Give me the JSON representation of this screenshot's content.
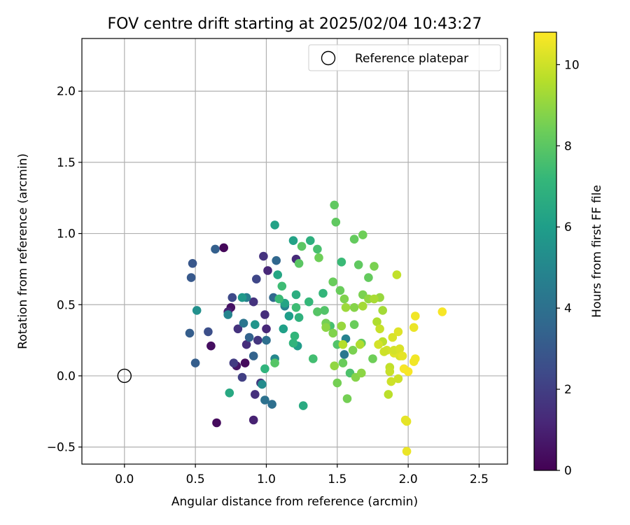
{
  "chart_data": {
    "type": "scatter",
    "title": "FOV centre drift starting at 2025/02/04 10:43:27",
    "xlabel": "Angular distance from reference (arcmin)",
    "ylabel": "Rotation from reference (arcmin)",
    "xlim": [
      -0.3,
      2.7
    ],
    "ylim": [
      -0.62,
      2.37
    ],
    "xticks": [
      0.0,
      0.5,
      1.0,
      1.5,
      2.0,
      2.5
    ],
    "xtick_labels": [
      "0.0",
      "0.5",
      "1.0",
      "1.5",
      "2.0",
      "2.5"
    ],
    "yticks": [
      -0.5,
      0.0,
      0.5,
      1.0,
      1.5,
      2.0
    ],
    "ytick_labels": [
      "−0.5",
      "0.0",
      "0.5",
      "1.0",
      "1.5",
      "2.0"
    ],
    "grid": true,
    "legend": {
      "location": "upper right",
      "label": "Reference platepar"
    },
    "reference_point": {
      "x": 0.0,
      "y": 0.0
    },
    "colorbar": {
      "label": "Hours from first FF file",
      "min": 0,
      "max": 10.8,
      "ticks": [
        0,
        2,
        4,
        6,
        8,
        10
      ],
      "tick_labels": [
        "0",
        "2",
        "4",
        "6",
        "8",
        "10"
      ],
      "colormap": "viridis",
      "colormap_stops": [
        "#440154",
        "#482878",
        "#3e4a89",
        "#31688e",
        "#26828e",
        "#1f9e89",
        "#35b779",
        "#6ece58",
        "#b5de2b",
        "#fde725"
      ]
    },
    "points": [
      [
        0.7,
        0.9,
        0.2
      ],
      [
        0.85,
        0.09,
        0.3
      ],
      [
        0.65,
        -0.33,
        0.3
      ],
      [
        0.61,
        0.21,
        0.4
      ],
      [
        0.75,
        0.48,
        0.5
      ],
      [
        0.79,
        0.07,
        0.6
      ],
      [
        0.91,
        -0.31,
        1.0
      ],
      [
        0.73,
        0.45,
        1.0
      ],
      [
        1.0,
        0.33,
        1.2
      ],
      [
        1.01,
        0.74,
        1.2
      ],
      [
        0.86,
        0.22,
        1.4
      ],
      [
        1.21,
        0.82,
        1.3
      ],
      [
        0.99,
        0.43,
        1.4
      ],
      [
        0.92,
        -0.13,
        1.5
      ],
      [
        0.91,
        0.52,
        1.6
      ],
      [
        0.98,
        0.84,
        1.6
      ],
      [
        0.94,
        0.25,
        1.7
      ],
      [
        0.8,
        0.33,
        1.6
      ],
      [
        0.96,
        -0.05,
        1.7
      ],
      [
        0.77,
        0.09,
        1.9
      ],
      [
        0.83,
        -0.01,
        2.0
      ],
      [
        0.93,
        0.68,
        2.3
      ],
      [
        0.76,
        0.55,
        2.4
      ],
      [
        0.59,
        0.31,
        2.6
      ],
      [
        0.48,
        0.79,
        2.9
      ],
      [
        0.47,
        0.69,
        3.0
      ],
      [
        0.46,
        0.3,
        3.2
      ],
      [
        0.5,
        0.09,
        3.2
      ],
      [
        0.64,
        0.89,
        3.3
      ],
      [
        0.88,
        0.27,
        3.4
      ],
      [
        0.91,
        0.14,
        3.4
      ],
      [
        1.07,
        0.81,
        3.6
      ],
      [
        1.05,
        0.55,
        3.6
      ],
      [
        1.0,
        0.25,
        3.9
      ],
      [
        1.04,
        -0.2,
        3.9
      ],
      [
        0.99,
        -0.17,
        4.0
      ],
      [
        0.84,
        0.37,
        4.2
      ],
      [
        1.55,
        0.15,
        4.3
      ],
      [
        0.86,
        0.55,
        4.6
      ],
      [
        1.56,
        0.26,
        4.8
      ],
      [
        1.13,
        0.49,
        4.8
      ],
      [
        0.73,
        0.43,
        4.9
      ],
      [
        1.06,
        0.12,
        5.0
      ],
      [
        0.97,
        -0.06,
        5.2
      ],
      [
        0.51,
        0.46,
        5.4
      ],
      [
        0.92,
        0.36,
        5.6
      ],
      [
        0.83,
        0.55,
        5.8
      ],
      [
        1.22,
        0.21,
        5.9
      ],
      [
        1.16,
        0.42,
        6.0
      ],
      [
        1.12,
        0.33,
        6.1
      ],
      [
        1.06,
        1.06,
        6.2
      ],
      [
        1.19,
        0.95,
        6.2
      ],
      [
        1.13,
        0.51,
        6.3
      ],
      [
        1.08,
        0.71,
        6.4
      ],
      [
        0.74,
        -0.12,
        6.5
      ],
      [
        1.26,
        -0.21,
        6.6
      ],
      [
        1.21,
        0.57,
        6.7
      ],
      [
        1.31,
        0.95,
        6.8
      ],
      [
        1.23,
        0.41,
        6.9
      ],
      [
        1.19,
        0.23,
        7.0
      ],
      [
        0.99,
        0.05,
        7.0
      ],
      [
        1.2,
        0.28,
        7.1
      ],
      [
        1.3,
        0.52,
        7.2
      ],
      [
        1.09,
        0.54,
        7.3
      ],
      [
        1.4,
        0.58,
        7.1
      ],
      [
        1.53,
        0.8,
        7.3
      ],
      [
        1.11,
        0.63,
        7.4
      ],
      [
        1.21,
        0.48,
        7.4
      ],
      [
        1.33,
        0.12,
        7.5
      ],
      [
        1.36,
        0.89,
        7.6
      ],
      [
        1.45,
        0.35,
        7.6
      ],
      [
        1.59,
        0.02,
        7.7
      ],
      [
        1.5,
        0.22,
        7.8
      ],
      [
        1.41,
        0.46,
        7.8
      ],
      [
        1.36,
        0.45,
        7.9
      ],
      [
        1.06,
        0.09,
        7.9
      ],
      [
        1.23,
        0.79,
        8.0
      ],
      [
        1.25,
        0.91,
        8.0
      ],
      [
        1.65,
        0.78,
        8.1
      ],
      [
        1.48,
        1.2,
        8.1
      ],
      [
        1.49,
        1.08,
        8.1
      ],
      [
        1.62,
        0.96,
        8.2
      ],
      [
        1.67,
        0.23,
        8.2
      ],
      [
        1.72,
        0.69,
        8.2
      ],
      [
        1.52,
        0.6,
        8.3
      ],
      [
        1.54,
        0.09,
        8.3
      ],
      [
        1.47,
        0.66,
        8.3
      ],
      [
        1.62,
        0.36,
        8.3
      ],
      [
        1.37,
        0.83,
        8.4
      ],
      [
        1.75,
        0.12,
        8.4
      ],
      [
        1.68,
        0.99,
        8.4
      ],
      [
        1.57,
        -0.16,
        8.5
      ],
      [
        1.5,
        -0.05,
        8.5
      ],
      [
        1.42,
        0.37,
        8.5
      ],
      [
        1.76,
        0.77,
        8.6
      ],
      [
        1.61,
        0.18,
        8.6
      ],
      [
        1.68,
        0.57,
        8.6
      ],
      [
        1.55,
        0.54,
        8.7
      ],
      [
        1.47,
        0.3,
        8.7
      ],
      [
        1.62,
        0.48,
        8.8
      ],
      [
        1.63,
        -0.01,
        8.8
      ],
      [
        1.67,
        0.02,
        8.9
      ],
      [
        1.42,
        0.34,
        8.9
      ],
      [
        1.48,
        0.07,
        9.0
      ],
      [
        1.72,
        0.54,
        9.0
      ],
      [
        1.8,
        0.55,
        9.1
      ],
      [
        1.53,
        0.35,
        9.1
      ],
      [
        1.56,
        0.48,
        9.2
      ],
      [
        1.68,
        0.49,
        9.3
      ],
      [
        1.82,
        0.46,
        9.3
      ],
      [
        1.76,
        0.54,
        9.4
      ],
      [
        1.78,
        0.38,
        9.5
      ],
      [
        1.66,
        0.22,
        9.5
      ],
      [
        1.54,
        0.22,
        9.6
      ],
      [
        1.82,
        0.24,
        9.7
      ],
      [
        1.86,
        -0.13,
        9.7
      ],
      [
        1.92,
        0.71,
        9.8
      ],
      [
        1.87,
        0.06,
        9.8
      ],
      [
        1.8,
        0.33,
        9.9
      ],
      [
        1.87,
        0.03,
        9.9
      ],
      [
        1.88,
        -0.04,
        10.0
      ],
      [
        1.93,
        -0.02,
        10.0
      ],
      [
        1.79,
        0.22,
        10.1
      ],
      [
        1.85,
        0.18,
        10.1
      ],
      [
        1.89,
        0.27,
        10.2
      ],
      [
        1.94,
        0.14,
        10.2
      ],
      [
        1.9,
        0.16,
        10.3
      ],
      [
        1.93,
        0.31,
        10.3
      ],
      [
        1.98,
        -0.31,
        10.4
      ],
      [
        1.99,
        -0.32,
        10.4
      ],
      [
        1.99,
        -0.53,
        10.5
      ],
      [
        2.04,
        0.34,
        10.5
      ],
      [
        2.05,
        0.42,
        10.6
      ],
      [
        2.05,
        0.12,
        10.6
      ],
      [
        2.04,
        0.1,
        10.6
      ],
      [
        2.0,
        0.03,
        10.7
      ],
      [
        1.97,
        0.05,
        10.7
      ],
      [
        2.24,
        0.45,
        10.7
      ],
      [
        1.83,
        0.17,
        10.0
      ],
      [
        1.9,
        0.18,
        10.1
      ],
      [
        1.94,
        0.19,
        10.2
      ],
      [
        1.96,
        0.14,
        10.4
      ]
    ]
  }
}
